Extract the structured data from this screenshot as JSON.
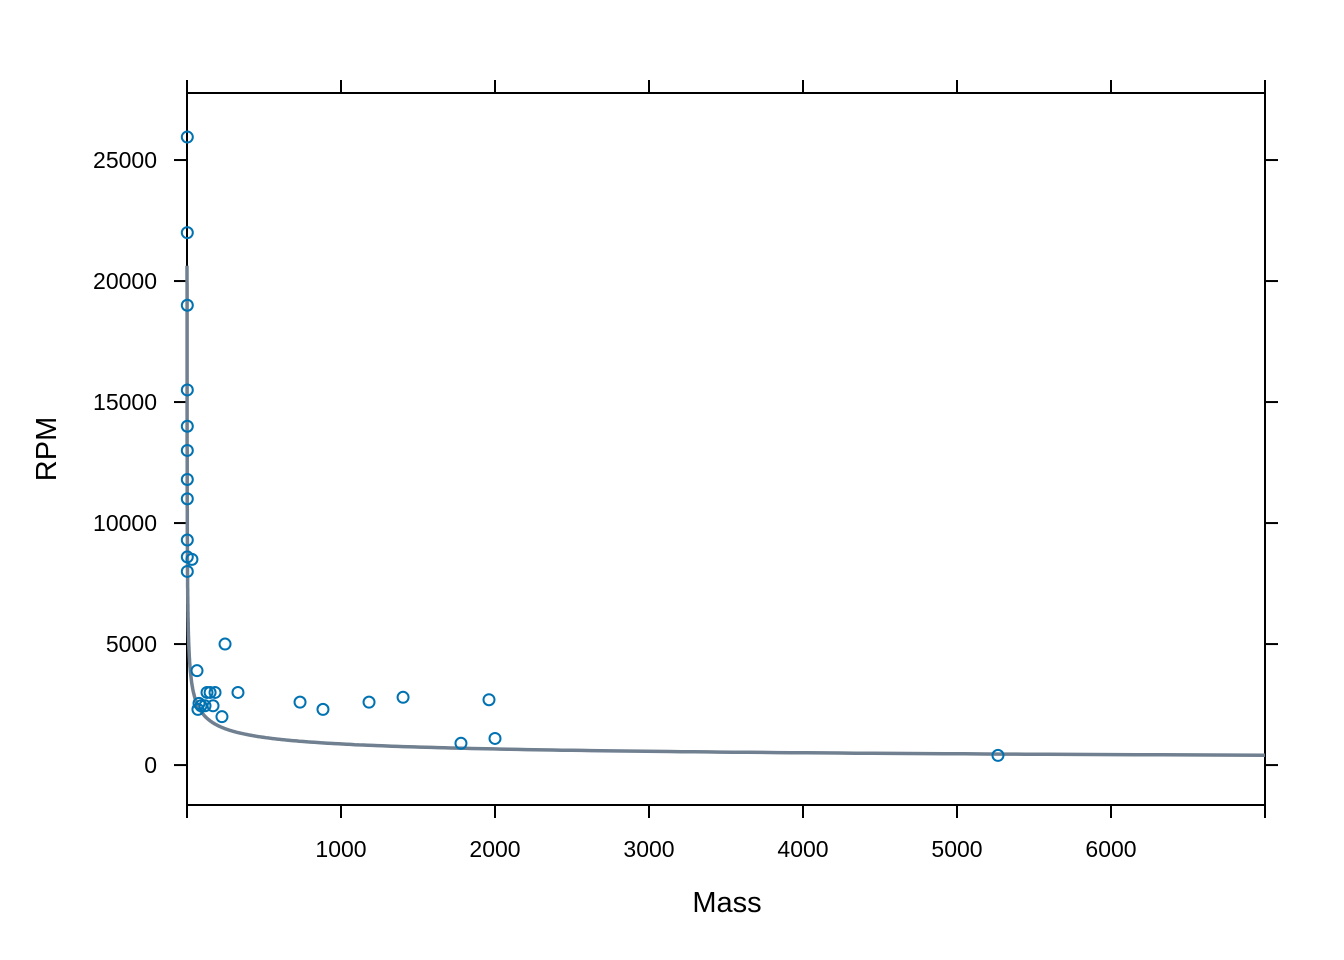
{
  "chart_data": {
    "type": "scatter",
    "title": "",
    "xlabel": "Mass",
    "ylabel": "RPM",
    "xlim": [
      0,
      7000
    ],
    "ylim": [
      -1650,
      27770
    ],
    "xticks": [
      1000,
      2000,
      3000,
      4000,
      5000,
      6000
    ],
    "yticks": [
      0,
      5000,
      10000,
      15000,
      20000,
      25000
    ],
    "grid": false,
    "point_color": "#0072B2",
    "line_color": "#708090",
    "points": [
      [
        2,
        25950
      ],
      [
        2,
        22000
      ],
      [
        2,
        19000
      ],
      [
        2,
        15500
      ],
      [
        2,
        14000
      ],
      [
        2,
        13000
      ],
      [
        2,
        11800
      ],
      [
        2,
        11000
      ],
      [
        2,
        9300
      ],
      [
        2,
        8600
      ],
      [
        32,
        8500
      ],
      [
        2,
        8000
      ],
      [
        247,
        5000
      ],
      [
        65,
        3900
      ],
      [
        331,
        3000
      ],
      [
        734,
        2600
      ],
      [
        883,
        2300
      ],
      [
        1182,
        2600
      ],
      [
        1403,
        2800
      ],
      [
        1779,
        900
      ],
      [
        1961,
        2700
      ],
      [
        2000,
        1100
      ],
      [
        5266,
        400
      ],
      [
        130,
        3000
      ],
      [
        150,
        3000
      ],
      [
        182,
        3000
      ],
      [
        169,
        2450
      ],
      [
        227,
        2000
      ],
      [
        78,
        2550
      ],
      [
        71,
        2300
      ],
      [
        117,
        2450
      ],
      [
        91,
        2450
      ]
    ],
    "fit": {
      "model": "y = a * x^b",
      "a": 12900,
      "b": -0.39
    }
  }
}
